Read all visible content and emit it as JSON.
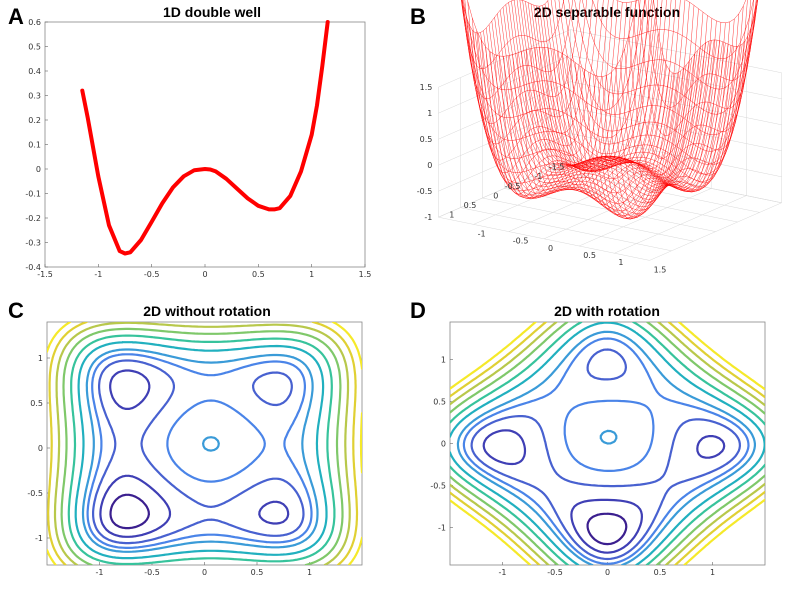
{
  "chart_data": [
    {
      "panel": "A",
      "type": "line",
      "title": "1D double well",
      "xlim": [
        -1.5,
        1.5
      ],
      "ylim": [
        -0.4,
        0.6
      ],
      "xticks": [
        -1.5,
        -1,
        -0.5,
        0,
        0.5,
        1,
        1.5
      ],
      "xtick_labels": [
        "-1.5",
        "-1",
        "-0.5",
        "0",
        "0.5",
        "1",
        "1.5"
      ],
      "yticks": [
        -0.4,
        -0.3,
        -0.2,
        -0.1,
        0,
        0.1,
        0.2,
        0.3,
        0.4,
        0.5,
        0.6
      ],
      "ytick_labels": [
        "-0.4",
        "-0.3",
        "-0.2",
        "-0.1",
        "0",
        "0.1",
        "0.2",
        "0.3",
        "0.4",
        "0.5",
        "0.6"
      ],
      "series": [
        {
          "color": "#ff0000",
          "x": [
            -1.15,
            -1.1,
            -1.0,
            -0.9,
            -0.8,
            -0.75,
            -0.7,
            -0.6,
            -0.5,
            -0.4,
            -0.3,
            -0.2,
            -0.1,
            0.0,
            0.05,
            0.1,
            0.2,
            0.3,
            0.4,
            0.5,
            0.6,
            0.65,
            0.7,
            0.8,
            0.9,
            1.0,
            1.05,
            1.1,
            1.15
          ],
          "y": [
            0.32,
            0.21,
            -0.03,
            -0.23,
            -0.335,
            -0.345,
            -0.34,
            -0.29,
            -0.215,
            -0.14,
            -0.075,
            -0.03,
            -0.005,
            0.0,
            -0.002,
            -0.01,
            -0.04,
            -0.08,
            -0.12,
            -0.15,
            -0.165,
            -0.165,
            -0.16,
            -0.11,
            -0.01,
            0.14,
            0.26,
            0.42,
            0.6
          ]
        }
      ]
    },
    {
      "panel": "B",
      "type": "surface",
      "title": "2D separable function",
      "color": "#ff0000",
      "zticks": [
        -1,
        -0.5,
        0,
        0.5,
        1,
        1.5
      ],
      "ztick_labels": [
        "-1",
        "-0.5",
        "0",
        "0.5",
        "1",
        "1.5"
      ],
      "yticks": [
        -1.5,
        -1,
        -0.5,
        0,
        0.5,
        1
      ],
      "ytick_labels": [
        "-1.5",
        "-1",
        "-0.5",
        "0",
        "0.5",
        "1"
      ],
      "xticks": [
        -1,
        -0.5,
        0,
        0.5,
        1,
        1.5
      ],
      "xtick_labels": [
        "-1",
        "-0.5",
        "0",
        "0.5",
        "1",
        "1.5"
      ]
    },
    {
      "panel": "C",
      "type": "contour",
      "title": "2D without rotation",
      "xlim": [
        -1.5,
        1.5
      ],
      "ylim": [
        -1.3,
        1.4
      ],
      "xticks": [
        -1,
        -0.5,
        0,
        0.5,
        1
      ],
      "xtick_labels": [
        "-1",
        "-0.5",
        "0",
        "0.5",
        "1"
      ],
      "yticks": [
        -1,
        -0.5,
        0,
        0.5,
        1
      ],
      "ytick_labels": [
        "-1",
        "-0.5",
        "0",
        "0.5",
        "1"
      ],
      "rotation": 0,
      "levels": [
        -0.58,
        -0.45,
        -0.3,
        -0.15,
        0.0,
        0.3,
        0.65,
        1.1,
        1.6,
        2.2,
        2.9
      ],
      "colormap": [
        "#3b1f8f",
        "#3f3fb5",
        "#4861d0",
        "#4a84e8",
        "#3a9bd8",
        "#21b0bf",
        "#37c39c",
        "#7fc86a",
        "#b8c84b",
        "#e0d033",
        "#f5e92a"
      ]
    },
    {
      "panel": "D",
      "type": "contour",
      "title": "2D with rotation",
      "xlim": [
        -1.5,
        1.5
      ],
      "ylim": [
        -1.45,
        1.45
      ],
      "xticks": [
        -1,
        -0.5,
        0,
        0.5,
        1
      ],
      "xtick_labels": [
        "-1",
        "-0.5",
        "0",
        "0.5",
        "1"
      ],
      "yticks": [
        -1,
        -0.5,
        0,
        0.5,
        1
      ],
      "ytick_labels": [
        "-1",
        "-0.5",
        "0",
        "0.5",
        "1"
      ],
      "rotation": 0.7854,
      "levels": [
        -0.58,
        -0.45,
        -0.3,
        -0.15,
        0.0,
        0.3,
        0.65,
        1.1,
        1.6,
        2.2,
        2.9
      ],
      "colormap": [
        "#3b1f8f",
        "#3f3fb5",
        "#4861d0",
        "#4a84e8",
        "#3a9bd8",
        "#21b0bf",
        "#37c39c",
        "#7fc86a",
        "#b8c84b",
        "#e0d033",
        "#f5e92a"
      ]
    }
  ]
}
